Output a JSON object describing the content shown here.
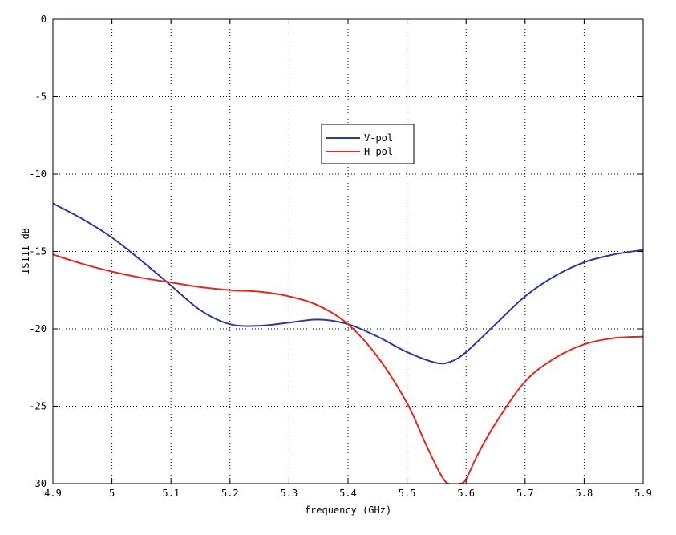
{
  "chart_data": {
    "type": "line",
    "title": "",
    "xlabel": "frequency (GHz)",
    "ylabel": "IS11I dB",
    "xlim": [
      4.9,
      5.9
    ],
    "ylim": [
      -30,
      0
    ],
    "x_ticks": [
      4.9,
      5.0,
      5.1,
      5.2,
      5.3,
      5.4,
      5.5,
      5.6,
      5.7,
      5.8,
      5.9
    ],
    "x_tick_labels": [
      "4.9",
      "5",
      "5.1",
      "5.2",
      "5.3",
      "5.4",
      "5.5",
      "5.6",
      "5.7",
      "5.8",
      "5.9"
    ],
    "y_ticks": [
      0,
      -5,
      -10,
      -15,
      -20,
      -25,
      -30
    ],
    "y_tick_labels": [
      "0",
      "-5",
      "-10",
      "-15",
      "-20",
      "-25",
      "-30"
    ],
    "grid": true,
    "legend_position": "top-center",
    "series": [
      {
        "name": "V-pol",
        "color": "#2b3a9e",
        "x": [
          4.9,
          4.95,
          5.0,
          5.05,
          5.1,
          5.15,
          5.2,
          5.25,
          5.3,
          5.35,
          5.4,
          5.45,
          5.5,
          5.55,
          5.575,
          5.6,
          5.65,
          5.7,
          5.75,
          5.8,
          5.85,
          5.9
        ],
        "y": [
          -11.9,
          -12.9,
          -14.1,
          -15.6,
          -17.2,
          -18.8,
          -19.7,
          -19.8,
          -19.6,
          -19.4,
          -19.7,
          -20.5,
          -21.5,
          -22.2,
          -22.1,
          -21.5,
          -19.7,
          -17.9,
          -16.6,
          -15.7,
          -15.2,
          -14.9
        ]
      },
      {
        "name": "H-pol",
        "color": "#e5281c",
        "x": [
          4.9,
          4.95,
          5.0,
          5.05,
          5.1,
          5.15,
          5.2,
          5.25,
          5.3,
          5.35,
          5.4,
          5.45,
          5.5,
          5.53,
          5.55,
          5.56,
          5.57,
          5.59,
          5.6,
          5.62,
          5.65,
          5.7,
          5.75,
          5.8,
          5.85,
          5.9
        ],
        "y": [
          -15.2,
          -15.8,
          -16.3,
          -16.7,
          -17.0,
          -17.3,
          -17.5,
          -17.6,
          -17.9,
          -18.5,
          -19.7,
          -21.8,
          -24.8,
          -27.3,
          -28.9,
          -29.6,
          -30.0,
          -30.0,
          -29.7,
          -28.1,
          -26.1,
          -23.4,
          -21.9,
          -21.0,
          -20.6,
          -20.5
        ]
      }
    ]
  }
}
